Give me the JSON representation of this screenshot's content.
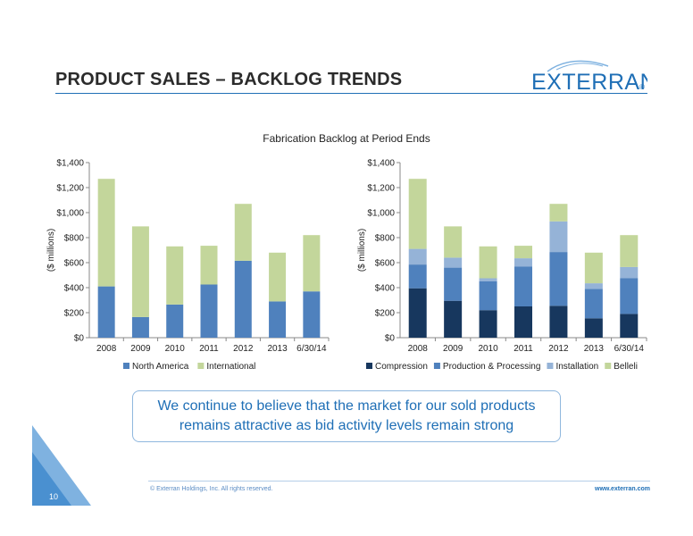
{
  "header": {
    "title": "PRODUCT SALES – BACKLOG TRENDS",
    "logo_text": "EXTERRAN",
    "logo_mark": "®"
  },
  "chart_title": "Fabrication Backlog at Period Ends",
  "callout": "We continue to believe that the market for our sold products remains attractive as bid activity levels remain strong",
  "footer": {
    "page": "10",
    "copyright": "© Exterran Holdings, Inc. All rights reserved.",
    "website": "www.exterran.com"
  },
  "chart_data": [
    {
      "type": "bar",
      "stacked": true,
      "categories": [
        "2008",
        "2009",
        "2010",
        "2011",
        "2012",
        "2013",
        "6/30/14"
      ],
      "ylabel": "($ millions)",
      "ylim": [
        0,
        1400
      ],
      "yticks": [
        "$0",
        "$200",
        "$400",
        "$600",
        "$800",
        "$1,000",
        "$1,200",
        "$1,400"
      ],
      "legend_position": "bottom",
      "series": [
        {
          "name": "North America",
          "color": "#4f81bd",
          "values": [
            410,
            165,
            265,
            425,
            615,
            290,
            370
          ]
        },
        {
          "name": "International",
          "color": "#c3d69b",
          "values": [
            860,
            725,
            465,
            310,
            455,
            390,
            450
          ]
        }
      ]
    },
    {
      "type": "bar",
      "stacked": true,
      "categories": [
        "2008",
        "2009",
        "2010",
        "2011",
        "2012",
        "2013",
        "6/30/14"
      ],
      "ylabel": "($ millions)",
      "ylim": [
        0,
        1400
      ],
      "yticks": [
        "$0",
        "$200",
        "$400",
        "$600",
        "$800",
        "$1,000",
        "$1,200",
        "$1,400"
      ],
      "legend_position": "bottom",
      "series": [
        {
          "name": "Compression",
          "color": "#17375e",
          "values": [
            395,
            295,
            220,
            250,
            255,
            155,
            190
          ]
        },
        {
          "name": "Production & Processing",
          "color": "#4f81bd",
          "values": [
            190,
            265,
            230,
            320,
            430,
            235,
            285
          ]
        },
        {
          "name": "Installation",
          "color": "#95b3d7",
          "values": [
            125,
            80,
            25,
            65,
            245,
            45,
            90
          ]
        },
        {
          "name": "Belleli",
          "color": "#c3d69b",
          "values": [
            560,
            250,
            255,
            100,
            140,
            245,
            255
          ]
        }
      ]
    }
  ]
}
